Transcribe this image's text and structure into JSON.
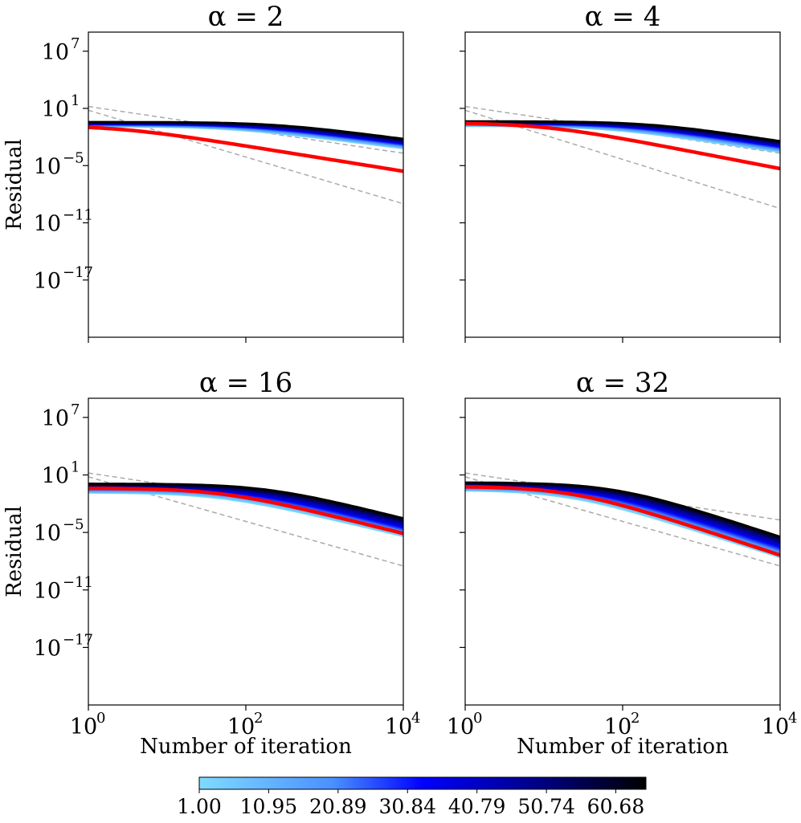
{
  "figure": {
    "x_axis_label": "Number of iteration",
    "y_axis_label": "Residual",
    "x_ticks": [
      {
        "base": "10",
        "exp": "0"
      },
      {
        "base": "10",
        "exp": "2"
      },
      {
        "base": "10",
        "exp": "4"
      }
    ],
    "y_ticks": [
      {
        "base": "10",
        "exp": "7"
      },
      {
        "base": "10",
        "exp": "1"
      },
      {
        "base": "10",
        "exp": "−5"
      },
      {
        "base": "10",
        "exp": "−11"
      },
      {
        "base": "10",
        "exp": "−17"
      }
    ]
  },
  "colorbar": {
    "ticks": [
      "1.00",
      "10.95",
      "20.89",
      "30.84",
      "40.79",
      "50.74",
      "60.68"
    ],
    "colors": [
      "#7fdbff",
      "#4a90ff",
      "#0000ff",
      "#00008b",
      "#000000"
    ]
  },
  "chart_data": [
    {
      "type": "line",
      "title": "α = 2",
      "alpha": 2,
      "xscale": "log",
      "yscale": "log",
      "xlim": [
        1,
        10000
      ],
      "ylim_log10": [
        -23,
        9
      ],
      "series_count": 20,
      "curve_log_residual": {
        "start": -1.0,
        "knee_iter": 120,
        "slope": -1.06,
        "spread": 0.9
      },
      "highlight_red": {
        "start": -1.2,
        "knee_iter": 2.5,
        "slope": -1.33
      },
      "reference_dashed": [
        {
          "start": 1.2,
          "end": -3.7
        },
        {
          "start": 0.8,
          "end": -9.0
        }
      ],
      "xlabel_shown": false,
      "ylabel_shown": true
    },
    {
      "type": "line",
      "title": "α = 4",
      "alpha": 4,
      "xscale": "log",
      "yscale": "log",
      "xlim": [
        1,
        10000
      ],
      "ylim_log10": [
        -23,
        9
      ],
      "series_count": 20,
      "curve_log_residual": {
        "start": -1.0,
        "knee_iter": 120,
        "slope": -1.25,
        "spread": 1.0
      },
      "highlight_red": {
        "start": -1.0,
        "knee_iter": 10,
        "slope": -1.6
      },
      "reference_dashed": [
        {
          "start": 1.2,
          "end": -3.7
        },
        {
          "start": 0.8,
          "end": -9.5
        }
      ],
      "xlabel_shown": false,
      "ylabel_shown": false
    },
    {
      "type": "line",
      "title": "α = 16",
      "alpha": 16,
      "xscale": "log",
      "yscale": "log",
      "xlim": [
        1,
        10000
      ],
      "ylim_log10": [
        -23,
        9
      ],
      "series_count": 20,
      "curve_log_residual": {
        "start": -1.0,
        "knee_iter": 90,
        "slope": -2.0,
        "spread": 2.4
      },
      "highlight_red": {
        "start": -1.0,
        "knee_iter": 50,
        "slope": -2.05
      },
      "reference_dashed": [
        {
          "start": 1.2,
          "end": -3.7
        },
        {
          "start": 0.8,
          "end": -8.5
        }
      ],
      "xlabel_shown": true,
      "ylabel_shown": true
    },
    {
      "type": "line",
      "title": "α = 32",
      "alpha": 32,
      "xscale": "log",
      "yscale": "log",
      "xlim": [
        1,
        10000
      ],
      "ylim_log10": [
        -23,
        9
      ],
      "series_count": 20,
      "curve_log_residual": {
        "start": -1.0,
        "knee_iter": 40,
        "slope": -2.65,
        "spread": 2.0
      },
      "highlight_red": {
        "start": -1.0,
        "knee_iter": 22,
        "slope": -2.7
      },
      "reference_dashed": [
        {
          "start": 1.2,
          "end": -3.7
        },
        {
          "start": 0.8,
          "end": -8.5
        }
      ],
      "xlabel_shown": true,
      "ylabel_shown": false
    }
  ]
}
